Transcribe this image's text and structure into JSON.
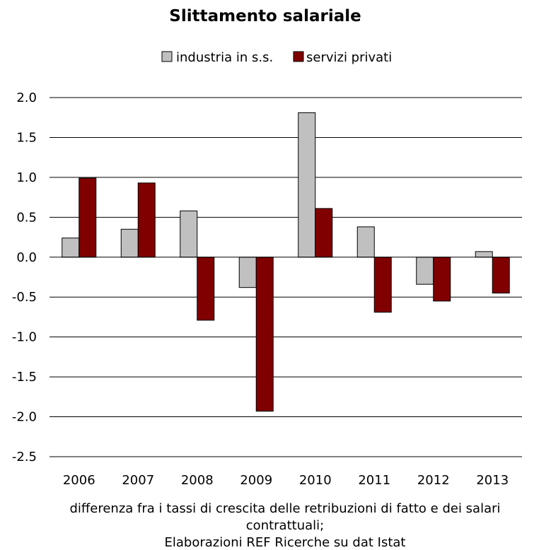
{
  "chart_data": {
    "type": "bar",
    "title": "Slittamento salariale",
    "categories": [
      "2006",
      "2007",
      "2008",
      "2009",
      "2010",
      "2011",
      "2012",
      "2013"
    ],
    "series": [
      {
        "name": "industria in s.s.",
        "color": "#c0c0c0",
        "values": [
          0.24,
          0.35,
          0.58,
          -0.38,
          1.81,
          0.38,
          -0.34,
          0.07
        ]
      },
      {
        "name": "servizi privati",
        "color": "#800000",
        "values": [
          0.99,
          0.93,
          -0.79,
          -1.93,
          0.61,
          -0.69,
          -0.55,
          -0.45
        ]
      }
    ],
    "ylim": [
      -2.5,
      2.0
    ],
    "yticks": [
      "2.0",
      "1.5",
      "1.0",
      "0.5",
      "0.0",
      "-0.5",
      "-1.0",
      "-1.5",
      "-2.0",
      "-2.5"
    ],
    "grid": true,
    "legend_position": "top",
    "xlabel_lines": [
      "differenza fra i tassi di crescita delle retribuzioni di fatto e dei salari",
      "contrattuali;",
      "Elaborazioni REF Ricerche su dat Istat"
    ]
  }
}
